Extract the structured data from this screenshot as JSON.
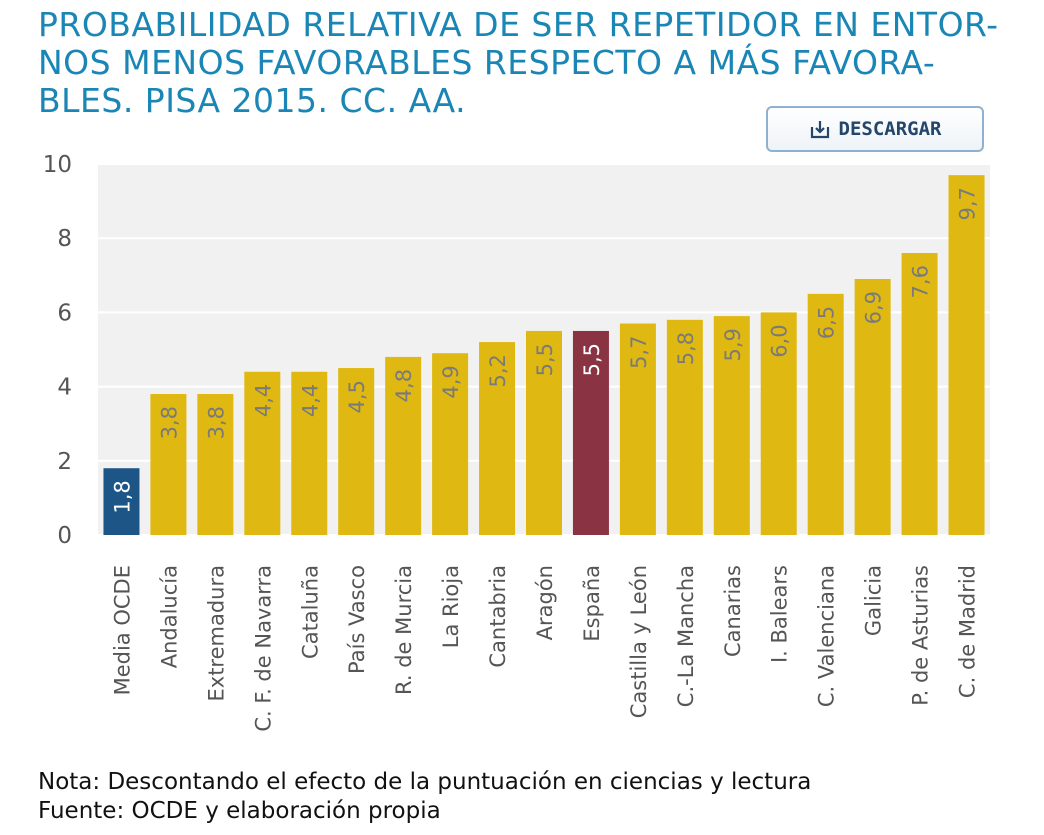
{
  "title": "PROBABILIDAD RELATIVA DE SER REPETIDOR EN ENTORNOS MENOS FAVORABLES RESPECTO A MÁS FAVORABLES. PISA 2015. CC. AA.",
  "title_lines": [
    "PROBABILIDAD RELATIVA DE SER REPETIDOR EN ENTOR-",
    "NOS MENOS FAVORABLES RESPECTO A MÁS FAVORA-",
    "BLES. PISA 2015. CC. AA."
  ],
  "download_button": {
    "label": "DESCARGAR",
    "icon": "download-icon"
  },
  "colors": {
    "title": "#1a86b5",
    "plot_background": "#f1f1f1",
    "default_bar": "#dfb811",
    "ocde_bar": "#1d5586",
    "spain_bar": "#8a3343",
    "bar_label": "#7a7a7a",
    "highlight_label": "#ffffff"
  },
  "chart_data": {
    "type": "bar",
    "orientation": "vertical",
    "categories": [
      "Media OCDE",
      "Andalucía",
      "Extremadura",
      "C. F. de Navarra",
      "Cataluña",
      "País Vasco",
      "R. de Murcia",
      "La Rioja",
      "Cantabria",
      "Aragón",
      "España",
      "Castilla y León",
      "C.-La Mancha",
      "Canarias",
      "I. Balears",
      "C. Valenciana",
      "Galicia",
      "P. de Asturias",
      "C. de Madrid"
    ],
    "values": [
      1.8,
      3.8,
      3.8,
      4.4,
      4.4,
      4.5,
      4.8,
      4.9,
      5.2,
      5.5,
      5.5,
      5.7,
      5.8,
      5.9,
      6.0,
      6.5,
      6.9,
      7.6,
      9.7
    ],
    "value_labels": [
      "1,8",
      "3,8",
      "3,8",
      "4,4",
      "4,4",
      "4,5",
      "4,8",
      "4,9",
      "5,2",
      "5,5",
      "5,5",
      "5,7",
      "5,8",
      "5,9",
      "6,0",
      "6,5",
      "6,9",
      "7,6",
      "9,7"
    ],
    "highlights": {
      "Media OCDE": "ocde_bar",
      "España": "spain_bar"
    },
    "ylim": [
      0,
      10
    ],
    "yticks": [
      0,
      2,
      4,
      6,
      8,
      10
    ],
    "ytick_labels": [
      "0",
      "2",
      "4",
      "6",
      "8",
      "10"
    ],
    "grid": true,
    "xlabel": "",
    "ylabel": ""
  },
  "notes": [
    "Nota: Descontando el efecto de la puntuación en ciencias y lectura",
    "Fuente: OCDE y elaboración propia"
  ]
}
